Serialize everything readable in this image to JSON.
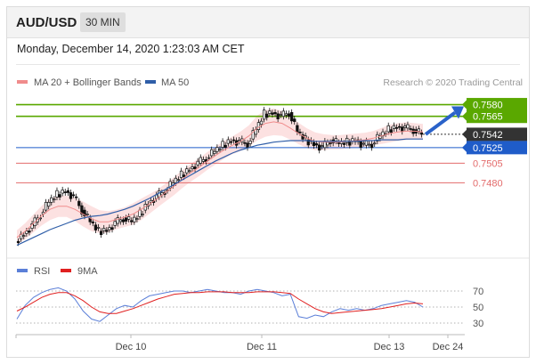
{
  "header": {
    "pair": "AUD/USD",
    "timeframe": "30 MIN"
  },
  "timestamp": "Monday, December 14, 2020 1:23:03 AM CET",
  "legend": {
    "ma20_bb": "MA 20 + Bollinger Bands",
    "ma50": "MA 50",
    "ma20_color": "#f08c8c",
    "ma50_color": "#2f5ea8"
  },
  "research": "Research © 2020 Trading Central",
  "rsi_legend": {
    "rsi": "RSI",
    "ma9": "9MA",
    "rsi_color": "#5b7fd8",
    "ma9_color": "#e02020"
  },
  "chart_data": {
    "type": "line",
    "price_range": [
      0.7395,
      0.76
    ],
    "levels": [
      {
        "value": 0.758,
        "label": "0.7580",
        "kind": "resistance",
        "color": "#5aa800"
      },
      {
        "value": 0.7565,
        "label": "0.7565",
        "kind": "resistance",
        "color": "#5aa800"
      },
      {
        "value": 0.7542,
        "label": "0.7542",
        "kind": "last",
        "color": "#333333"
      },
      {
        "value": 0.7525,
        "label": "0.7525",
        "kind": "pivot",
        "color": "#1f5cc9"
      },
      {
        "value": 0.7505,
        "label": "0.7505",
        "kind": "support",
        "color": "#e36b6b"
      },
      {
        "value": 0.748,
        "label": "0.7480",
        "kind": "support",
        "color": "#e36b6b"
      }
    ],
    "price_path": [
      0.7405,
      0.7415,
      0.7425,
      0.744,
      0.7455,
      0.7465,
      0.747,
      0.7462,
      0.7445,
      0.743,
      0.7418,
      0.742,
      0.7428,
      0.7435,
      0.743,
      0.744,
      0.7455,
      0.7462,
      0.747,
      0.748,
      0.749,
      0.7498,
      0.7505,
      0.7512,
      0.752,
      0.7528,
      0.7535,
      0.7532,
      0.753,
      0.7548,
      0.7568,
      0.757,
      0.7565,
      0.757,
      0.7545,
      0.7535,
      0.753,
      0.7525,
      0.7535,
      0.753,
      0.7532,
      0.7535,
      0.7528,
      0.753,
      0.754,
      0.7548,
      0.7552,
      0.755,
      0.7548,
      0.7542
    ],
    "ma20_path": [
      0.741,
      0.7418,
      0.7428,
      0.7438,
      0.7446,
      0.745,
      0.745,
      0.7446,
      0.744,
      0.7434,
      0.743,
      0.743,
      0.7433,
      0.7436,
      0.744,
      0.7446,
      0.7453,
      0.746,
      0.7468,
      0.7476,
      0.7485,
      0.7493,
      0.75,
      0.7508,
      0.7515,
      0.7522,
      0.7528,
      0.7533,
      0.754,
      0.755,
      0.7556,
      0.7558,
      0.7556,
      0.755,
      0.7543,
      0.7537,
      0.7533,
      0.7532,
      0.7532,
      0.7532,
      0.7533,
      0.7534,
      0.7535,
      0.7537,
      0.754,
      0.7543,
      0.7545,
      0.7546,
      0.7546,
      0.7545
    ],
    "ma50_path": [
      0.74,
      0.7405,
      0.741,
      0.7415,
      0.742,
      0.7424,
      0.7428,
      0.7432,
      0.7435,
      0.7437,
      0.7438,
      0.744,
      0.7443,
      0.7446,
      0.745,
      0.7455,
      0.746,
      0.7466,
      0.7472,
      0.7478,
      0.7484,
      0.749,
      0.7496,
      0.7502,
      0.7508,
      0.7513,
      0.7518,
      0.7522,
      0.7525,
      0.7528,
      0.753,
      0.7532,
      0.7533,
      0.7534,
      0.7534,
      0.7534,
      0.7533,
      0.7533,
      0.7533,
      0.7533,
      0.7533,
      0.7533,
      0.7534,
      0.7534,
      0.7535,
      0.7535,
      0.7535,
      0.7536,
      0.7536,
      0.7536
    ],
    "bb_width": [
      8,
      9,
      10,
      11,
      12,
      12,
      12,
      13,
      14,
      14,
      13,
      12,
      11,
      11,
      12,
      12,
      11,
      10,
      10,
      10,
      10,
      10,
      10,
      10,
      10,
      10,
      10,
      11,
      12,
      14,
      15,
      15,
      14,
      13,
      12,
      11,
      10,
      9,
      8,
      8,
      8,
      8,
      8,
      8,
      9,
      10,
      10,
      10,
      9,
      9
    ],
    "forecast_arrow": {
      "from": 0.7542,
      "to": 0.758
    },
    "x_labels": [
      "Dec 10",
      "Dec 11",
      "Dec 13",
      "Dec 24"
    ],
    "rsi": {
      "range": [
        20,
        80
      ],
      "ticks": [
        "70",
        "50",
        "30"
      ],
      "values": [
        35,
        52,
        62,
        68,
        72,
        74,
        70,
        60,
        45,
        35,
        32,
        40,
        48,
        52,
        50,
        58,
        64,
        66,
        68,
        70,
        70,
        68,
        70,
        72,
        70,
        68,
        68,
        66,
        70,
        72,
        70,
        68,
        64,
        66,
        38,
        36,
        40,
        38,
        44,
        48,
        46,
        48,
        46,
        48,
        52,
        54,
        56,
        58,
        56,
        50
      ],
      "ma9": [
        45,
        50,
        56,
        62,
        66,
        68,
        68,
        64,
        58,
        50,
        44,
        42,
        42,
        45,
        48,
        52,
        56,
        60,
        63,
        66,
        67,
        68,
        68,
        69,
        69,
        69,
        68,
        68,
        68,
        69,
        69,
        69,
        68,
        67,
        60,
        54,
        48,
        44,
        42,
        43,
        44,
        45,
        46,
        47,
        48,
        50,
        52,
        54,
        55,
        54
      ]
    }
  }
}
